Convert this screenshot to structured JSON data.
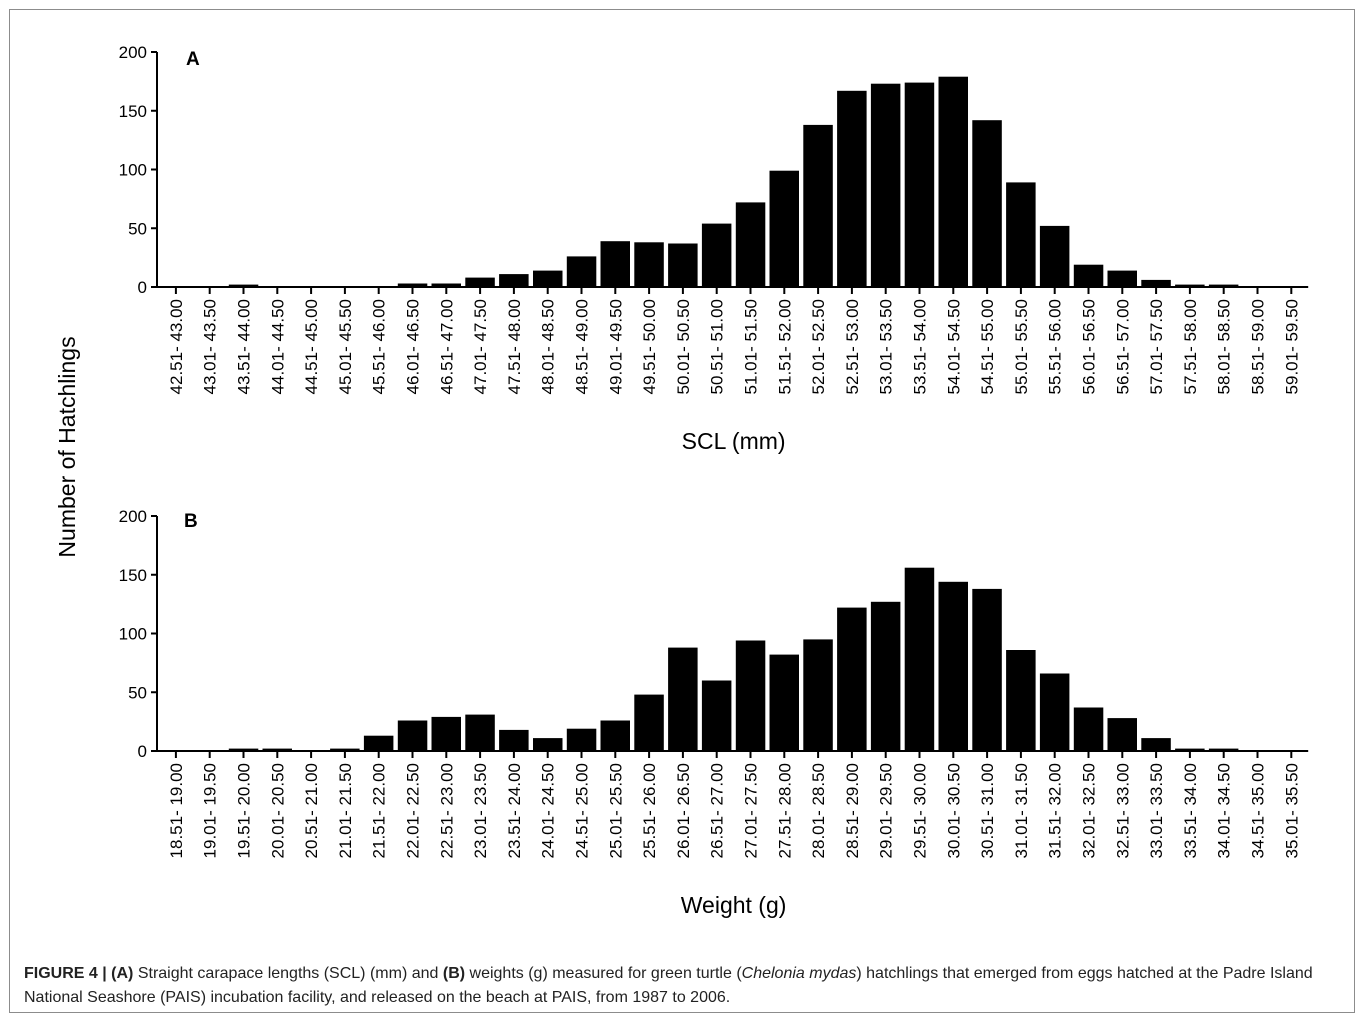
{
  "chart_data": [
    {
      "type": "bar",
      "panel_label": "A",
      "xlabel": "SCL (mm)",
      "ylabel": "Number of Hatchlings",
      "ylim": [
        0,
        200
      ],
      "yticks": [
        0,
        50,
        100,
        150,
        200
      ],
      "categories": [
        "42.51- 43.00",
        "43.01- 43.50",
        "43.51- 44.00",
        "44.01- 44.50",
        "44.51- 45.00",
        "45.01- 45.50",
        "45.51- 46.00",
        "46.01- 46.50",
        "46.51- 47.00",
        "47.01- 47.50",
        "47.51- 48.00",
        "48.01- 48.50",
        "48.51- 49.00",
        "49.01- 49.50",
        "49.51- 50.00",
        "50.01- 50.50",
        "50.51- 51.00",
        "51.01- 51.50",
        "51.51- 52.00",
        "52.01- 52.50",
        "52.51- 53.00",
        "53.01- 53.50",
        "53.51- 54.00",
        "54.01- 54.50",
        "54.51- 55.00",
        "55.01- 55.50",
        "55.51- 56.00",
        "56.01- 56.50",
        "56.51- 57.00",
        "57.01- 57.50",
        "57.51- 58.00",
        "58.01- 58.50",
        "58.51- 59.00",
        "59.01- 59.50"
      ],
      "values": [
        0,
        0,
        2,
        0,
        0,
        0,
        0,
        3,
        3,
        8,
        11,
        14,
        26,
        39,
        38,
        37,
        54,
        72,
        99,
        138,
        167,
        173,
        174,
        179,
        142,
        89,
        52,
        19,
        14,
        6,
        2,
        2,
        0,
        0
      ],
      "grid": false
    },
    {
      "type": "bar",
      "panel_label": "B",
      "xlabel": "Weight (g)",
      "ylabel": "Number of Hatchlings",
      "ylim": [
        0,
        200
      ],
      "yticks": [
        0,
        50,
        100,
        150,
        200
      ],
      "categories": [
        "18.51- 19.00",
        "19.01- 19.50",
        "19.51- 20.00",
        "20.01- 20.50",
        "20.51- 21.00",
        "21.01- 21.50",
        "21.51- 22.00",
        "22.01- 22.50",
        "22.51- 23.00",
        "23.01- 23.50",
        "23.51- 24.00",
        "24.01- 24.50",
        "24.51- 25.00",
        "25.01- 25.50",
        "25.51- 26.00",
        "26.01- 26.50",
        "26.51- 27.00",
        "27.01- 27.50",
        "27.51- 28.00",
        "28.01- 28.50",
        "28.51- 29.00",
        "29.01- 29.50",
        "29.51- 30.00",
        "30.01- 30.50",
        "30.51- 31.00",
        "31.01- 31.50",
        "31.51- 32.00",
        "32.01- 32.50",
        "32.51- 33.00",
        "33.01- 33.50",
        "33.51- 34.00",
        "34.01- 34.50",
        "34.51- 35.00",
        "35.01- 35.50"
      ],
      "values": [
        0,
        0,
        2,
        2,
        0,
        2,
        13,
        26,
        29,
        31,
        18,
        11,
        19,
        26,
        48,
        88,
        60,
        94,
        82,
        95,
        122,
        127,
        156,
        144,
        138,
        86,
        66,
        37,
        28,
        11,
        2,
        2,
        0,
        0
      ],
      "grid": false
    }
  ],
  "caption": {
    "figure_label": "FIGURE 4 |",
    "part_a_label": "(A)",
    "text_1": " Straight carapace lengths (SCL) (mm) and ",
    "part_b_label": "(B)",
    "text_2": " weights (g) measured for green turtle (",
    "species": "Chelonia mydas",
    "text_3": ") hatchlings that emerged from eggs hatched at the Padre Island National Seashore (PAIS) incubation facility, and released on the beach at PAIS, from 1987 to 2006."
  }
}
